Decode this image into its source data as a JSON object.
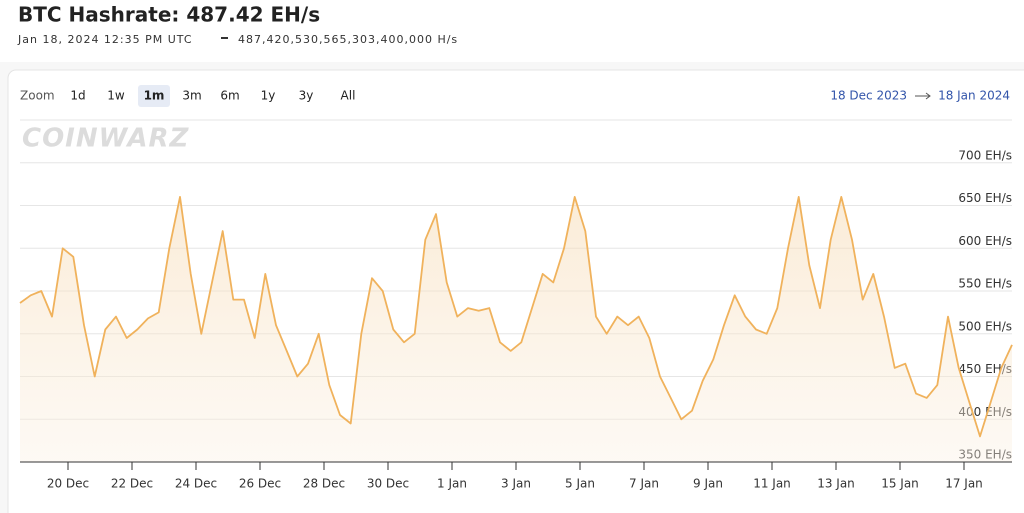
{
  "header": {
    "title": "BTC Hashrate: 487.42 EH/s",
    "timestamp": "Jan 18, 2024 12:35 PM UTC",
    "exact": "487,420,530,565,303,400,000 H/s"
  },
  "zoom": {
    "label": "Zoom",
    "options": [
      "1d",
      "1w",
      "1m",
      "3m",
      "6m",
      "1y",
      "3y",
      "All"
    ],
    "active": 2
  },
  "range": {
    "from": "18 Dec 2023",
    "to": "18 Jan 2024"
  },
  "watermark": "COINWARZ",
  "chart_data": {
    "type": "line",
    "color": "#f0b25c",
    "grid": true,
    "ylim": [
      350,
      750
    ],
    "yticks": [
      {
        "value": 350,
        "label": "350 EH/s"
      },
      {
        "value": 400,
        "label": "400 EH/s"
      },
      {
        "value": 450,
        "label": "450 EH/s"
      },
      {
        "value": 500,
        "label": "500 EH/s"
      },
      {
        "value": 550,
        "label": "550 EH/s"
      },
      {
        "value": 600,
        "label": "600 EH/s"
      },
      {
        "value": 650,
        "label": "650 EH/s"
      },
      {
        "value": 700,
        "label": "700 EH/s"
      }
    ],
    "xlim": [
      "2023-12-18T12:00",
      "2024-01-18T12:00"
    ],
    "xticks": [
      {
        "value": "2023-12-20T00:00",
        "label": "20 Dec"
      },
      {
        "value": "2023-12-22T00:00",
        "label": "22 Dec"
      },
      {
        "value": "2023-12-24T00:00",
        "label": "24 Dec"
      },
      {
        "value": "2023-12-26T00:00",
        "label": "26 Dec"
      },
      {
        "value": "2023-12-28T00:00",
        "label": "28 Dec"
      },
      {
        "value": "2023-12-30T00:00",
        "label": "30 Dec"
      },
      {
        "value": "2024-01-01T00:00",
        "label": "1 Jan"
      },
      {
        "value": "2024-01-03T00:00",
        "label": "3 Jan"
      },
      {
        "value": "2024-01-05T00:00",
        "label": "5 Jan"
      },
      {
        "value": "2024-01-07T00:00",
        "label": "7 Jan"
      },
      {
        "value": "2024-01-09T00:00",
        "label": "9 Jan"
      },
      {
        "value": "2024-01-11T00:00",
        "label": "11 Jan"
      },
      {
        "value": "2024-01-13T00:00",
        "label": "13 Jan"
      },
      {
        "value": "2024-01-15T00:00",
        "label": "15 Jan"
      },
      {
        "value": "2024-01-17T00:00",
        "label": "17 Jan"
      }
    ],
    "x": [
      "2023-12-18T12:00",
      "2023-12-18T20:00",
      "2023-12-19T04:00",
      "2023-12-19T12:00",
      "2023-12-19T20:00",
      "2023-12-20T04:00",
      "2023-12-20T12:00",
      "2023-12-20T20:00",
      "2023-12-21T04:00",
      "2023-12-21T12:00",
      "2023-12-21T20:00",
      "2023-12-22T04:00",
      "2023-12-22T12:00",
      "2023-12-22T20:00",
      "2023-12-23T04:00",
      "2023-12-23T12:00",
      "2023-12-23T20:00",
      "2023-12-24T04:00",
      "2023-12-24T12:00",
      "2023-12-24T20:00",
      "2023-12-25T04:00",
      "2023-12-25T12:00",
      "2023-12-25T20:00",
      "2023-12-26T04:00",
      "2023-12-26T12:00",
      "2023-12-26T20:00",
      "2023-12-27T04:00",
      "2023-12-27T12:00",
      "2023-12-27T20:00",
      "2023-12-28T04:00",
      "2023-12-28T12:00",
      "2023-12-28T20:00",
      "2023-12-29T04:00",
      "2023-12-29T12:00",
      "2023-12-29T20:00",
      "2023-12-30T04:00",
      "2023-12-30T12:00",
      "2023-12-30T20:00",
      "2023-12-31T04:00",
      "2023-12-31T12:00",
      "2023-12-31T20:00",
      "2024-01-01T04:00",
      "2024-01-01T12:00",
      "2024-01-01T20:00",
      "2024-01-02T04:00",
      "2024-01-02T12:00",
      "2024-01-02T20:00",
      "2024-01-03T04:00",
      "2024-01-03T12:00",
      "2024-01-03T20:00",
      "2024-01-04T04:00",
      "2024-01-04T12:00",
      "2024-01-04T20:00",
      "2024-01-05T04:00",
      "2024-01-05T12:00",
      "2024-01-05T20:00",
      "2024-01-06T04:00",
      "2024-01-06T12:00",
      "2024-01-06T20:00",
      "2024-01-07T04:00",
      "2024-01-07T12:00",
      "2024-01-07T20:00",
      "2024-01-08T04:00",
      "2024-01-08T12:00",
      "2024-01-08T20:00",
      "2024-01-09T04:00",
      "2024-01-09T12:00",
      "2024-01-09T20:00",
      "2024-01-10T04:00",
      "2024-01-10T12:00",
      "2024-01-10T20:00",
      "2024-01-11T04:00",
      "2024-01-11T12:00",
      "2024-01-11T20:00",
      "2024-01-12T04:00",
      "2024-01-12T12:00",
      "2024-01-12T20:00",
      "2024-01-13T04:00",
      "2024-01-13T12:00",
      "2024-01-13T20:00",
      "2024-01-14T04:00",
      "2024-01-14T12:00",
      "2024-01-14T20:00",
      "2024-01-15T04:00",
      "2024-01-15T12:00",
      "2024-01-15T20:00",
      "2024-01-16T04:00",
      "2024-01-16T12:00",
      "2024-01-16T20:00",
      "2024-01-17T04:00",
      "2024-01-17T12:00",
      "2024-01-17T20:00",
      "2024-01-18T04:00",
      "2024-01-18T12:00"
    ],
    "values": [
      536,
      545,
      550,
      520,
      600,
      590,
      510,
      450,
      505,
      520,
      495,
      505,
      518,
      525,
      600,
      660,
      570,
      500,
      560,
      620,
      540,
      540,
      495,
      570,
      510,
      480,
      450,
      465,
      500,
      440,
      405,
      395,
      500,
      565,
      550,
      505,
      490,
      500,
      610,
      640,
      560,
      520,
      530,
      527,
      530,
      490,
      480,
      490,
      530,
      570,
      560,
      600,
      660,
      620,
      520,
      500,
      520,
      510,
      520,
      495,
      450,
      425,
      400,
      410,
      445,
      470,
      510,
      545,
      520,
      505,
      500,
      530,
      600,
      660,
      580,
      530,
      610,
      660,
      610,
      540,
      570,
      520,
      460,
      465,
      430,
      425,
      440,
      520,
      460,
      420,
      380,
      420,
      460,
      487
    ]
  }
}
